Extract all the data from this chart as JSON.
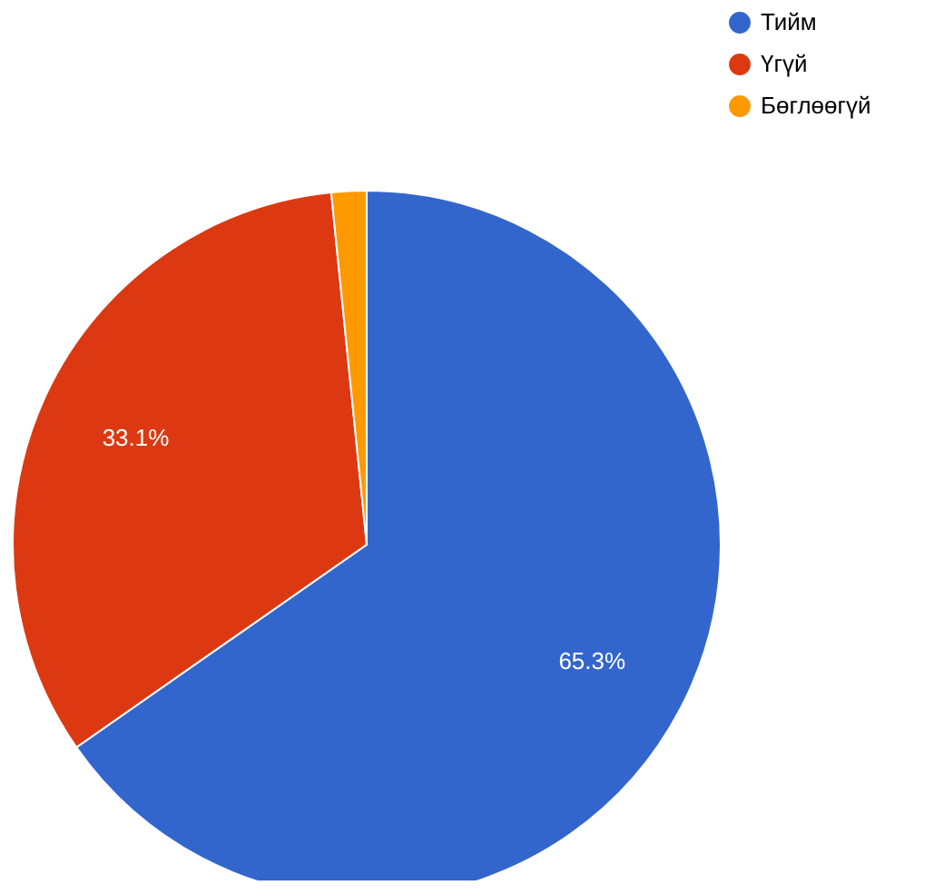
{
  "chart_data": {
    "type": "pie",
    "categories": [
      "Тийм",
      "Үгүй",
      "Бөглөөгүй"
    ],
    "values": [
      65.3,
      33.1,
      1.6
    ],
    "colors": [
      "#3366cc",
      "#dc3912",
      "#ff9900"
    ],
    "value_labels": [
      "65.3%",
      "33.1%",
      null
    ],
    "legend": "top right"
  }
}
